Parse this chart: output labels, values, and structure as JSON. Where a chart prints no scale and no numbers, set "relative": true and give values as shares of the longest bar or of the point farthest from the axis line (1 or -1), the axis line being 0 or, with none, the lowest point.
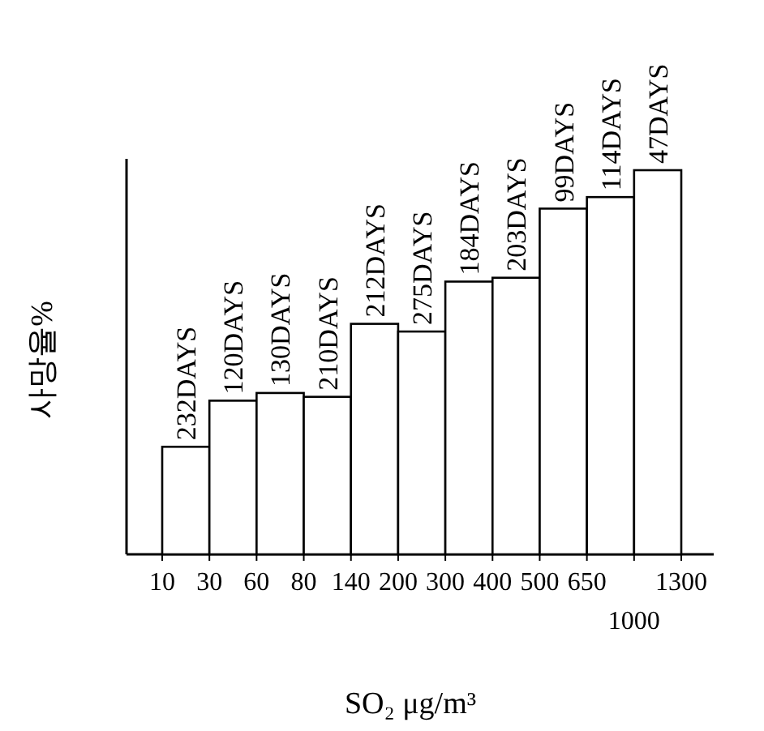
{
  "chart_data": {
    "type": "bar",
    "xlabel": "SO₂ μg/m³",
    "ylabel": "사망율%",
    "relative": true,
    "categories": [
      null,
      null,
      null,
      null,
      null,
      null,
      null,
      null,
      null,
      null,
      null
    ],
    "values": [
      0.28,
      0.4,
      0.42,
      0.41,
      0.6,
      0.58,
      0.71,
      0.72,
      0.9,
      0.93,
      1
    ],
    "annotations": [
      "232DAYS",
      "120DAYS",
      "130DAYS",
      "210DAYS",
      "212DAYS",
      "275DAYS",
      "184DAYS",
      "203DAYS",
      "99DAYS",
      "114DAYS",
      "47DAYS",
      "10",
      "30",
      "60",
      "80",
      "140",
      "200",
      "300",
      "400",
      "500",
      "650",
      "1000",
      "1300"
    ],
    "color": "#ffffff"
  }
}
